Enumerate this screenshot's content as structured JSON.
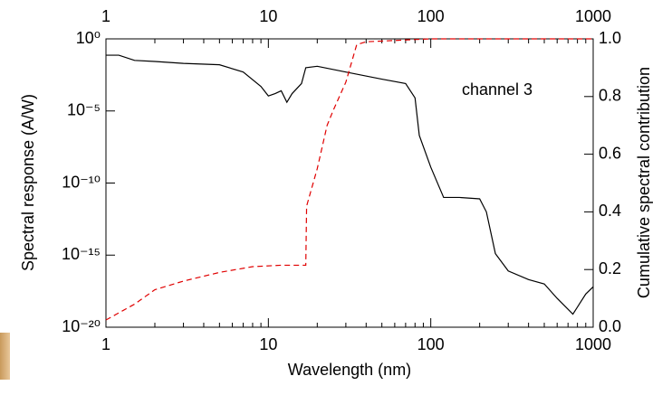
{
  "chart_data": {
    "type": "line",
    "xlabel": "Wavelength (nm)",
    "ylabel": "Spectral response (A/W)",
    "y2label": "Cumulative spectral contribution",
    "annotation": "channel 3",
    "xlog": true,
    "ylog": true,
    "xlim": [
      1,
      1000
    ],
    "xticks": [
      1,
      10,
      100,
      1000
    ],
    "x2ticks": [
      1,
      10,
      100,
      1000
    ],
    "ylim": [
      1e-20,
      1
    ],
    "yticks": [
      {
        "value": 1e-20,
        "label": "10⁻²⁰"
      },
      {
        "value": 1e-15,
        "label": "10⁻¹⁵"
      },
      {
        "value": 1e-10,
        "label": "10⁻¹⁰"
      },
      {
        "value": 1e-05,
        "label": "10⁻⁵"
      },
      {
        "value": 1,
        "label": "10⁰"
      }
    ],
    "y2lim": [
      0,
      1
    ],
    "y2ticks": [
      {
        "value": 0,
        "label": "0.0"
      },
      0.2,
      0.4,
      0.6,
      0.8,
      {
        "value": 1,
        "label": "1.0"
      }
    ],
    "series": [
      {
        "color": "#000000",
        "dashed": false,
        "x": [
          1,
          1.2,
          1.5,
          2,
          3,
          5,
          7,
          9,
          10,
          11,
          12,
          13,
          14,
          16,
          17,
          20,
          30,
          50,
          70,
          80,
          85,
          100,
          120,
          150,
          200,
          220,
          250,
          300,
          400,
          500,
          600,
          750,
          900,
          1000
        ],
        "values": [
          0.074,
          0.074,
          0.032,
          0.027,
          0.02,
          0.016,
          0.005,
          0.0005,
          0.00011,
          0.00016,
          0.00025,
          4e-05,
          0.00016,
          0.0008,
          0.01,
          0.0126,
          0.005,
          0.0016,
          0.0008,
          8e-05,
          2e-07,
          1.26e-09,
          1e-11,
          1e-11,
          8e-12,
          1e-12,
          1.26e-15,
          8e-17,
          2e-17,
          1e-17,
          1e-18,
          8e-20,
          2e-18,
          6.3e-18
        ]
      },
      {
        "color": "#e00000",
        "dashed": true,
        "axis": "y2",
        "x": [
          1,
          1.5,
          2,
          3,
          5,
          8,
          12,
          17,
          17.2,
          20,
          23,
          25,
          30,
          35,
          40,
          100,
          1000
        ],
        "values": [
          0.025,
          0.08,
          0.13,
          0.16,
          0.19,
          0.21,
          0.215,
          0.215,
          0.42,
          0.55,
          0.7,
          0.75,
          0.85,
          0.98,
          0.99,
          1.0,
          1.0
        ]
      }
    ]
  }
}
